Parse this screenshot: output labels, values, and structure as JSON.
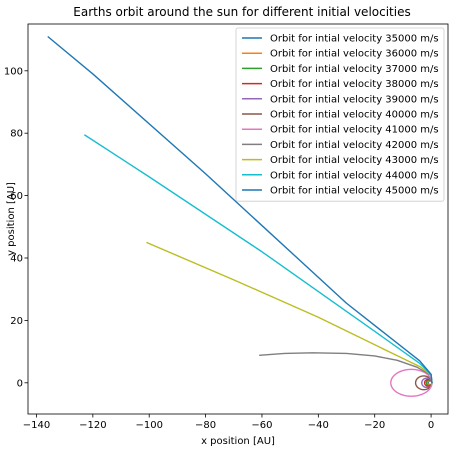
{
  "chart_data": {
    "type": "line",
    "title": "Earths orbit around the sun for different initial velocities",
    "xlabel": "x position [AU]",
    "ylabel": "y position [AU]",
    "xlim": [
      -143,
      6
    ],
    "ylim": [
      -10,
      115
    ],
    "xticks": [
      -140,
      -120,
      -100,
      -80,
      -60,
      -40,
      -20,
      0
    ],
    "yticks": [
      0,
      20,
      40,
      60,
      80,
      100
    ],
    "legend_position": "top-right",
    "grid": false,
    "series": [
      {
        "name": "Orbit for intial velocity 35000 m/s",
        "color": "#1f77b4",
        "kind": "ellipse",
        "cx": -0.35,
        "cy": 0,
        "rx": 0.65,
        "ry": 0.6
      },
      {
        "name": "Orbit for intial velocity 36000 m/s",
        "color": "#ff7f0e",
        "kind": "ellipse",
        "cx": -0.5,
        "cy": 0,
        "rx": 0.8,
        "ry": 0.7
      },
      {
        "name": "Orbit for intial velocity 37000 m/s",
        "color": "#2ca02c",
        "kind": "ellipse",
        "cx": -0.7,
        "cy": 0,
        "rx": 1.0,
        "ry": 0.9
      },
      {
        "name": "Orbit for intial velocity 38000 m/s",
        "color": "#d62728",
        "kind": "ellipse",
        "cx": -1.0,
        "cy": 0,
        "rx": 1.3,
        "ry": 1.1
      },
      {
        "name": "Orbit for intial velocity 39000 m/s",
        "color": "#9467bd",
        "kind": "ellipse",
        "cx": -1.5,
        "cy": 0,
        "rx": 1.8,
        "ry": 1.5
      },
      {
        "name": "Orbit for intial velocity 40000 m/s",
        "color": "#8c564b",
        "kind": "ellipse",
        "cx": -2.6,
        "cy": 0,
        "rx": 2.9,
        "ry": 2.2
      },
      {
        "name": "Orbit for intial velocity 41000 m/s",
        "color": "#e377c2",
        "kind": "ellipse",
        "cx": -7.0,
        "cy": 0,
        "rx": 7.3,
        "ry": 4.3
      },
      {
        "name": "Orbit for intial velocity 42000 m/s",
        "color": "#7f7f7f",
        "kind": "path",
        "points": [
          [
            0.3,
            0
          ],
          [
            0,
            2.4
          ],
          [
            -5,
            5
          ],
          [
            -12,
            7.2
          ],
          [
            -20,
            8.6
          ],
          [
            -30,
            9.4
          ],
          [
            -42,
            9.6
          ],
          [
            -52,
            9.4
          ],
          [
            -61,
            8.8
          ]
        ]
      },
      {
        "name": "Orbit for intial velocity 43000 m/s",
        "color": "#bcbd22",
        "kind": "path",
        "points": [
          [
            0.3,
            0
          ],
          [
            0,
            2.5
          ],
          [
            -4,
            5.2
          ],
          [
            -15,
            10
          ],
          [
            -40,
            21
          ],
          [
            -70,
            33
          ],
          [
            -101,
            45
          ]
        ]
      },
      {
        "name": "Orbit for intial velocity 44000 m/s",
        "color": "#17becf",
        "kind": "path",
        "points": [
          [
            0.3,
            0
          ],
          [
            0,
            2.6
          ],
          [
            -4,
            6.2
          ],
          [
            -20,
            16.5
          ],
          [
            -60,
            42
          ],
          [
            -100,
            66
          ],
          [
            -123,
            79.5
          ]
        ]
      },
      {
        "name": "Orbit for intial velocity 45000 m/s",
        "color": "#1f77b4",
        "kind": "path",
        "points": [
          [
            0.3,
            0
          ],
          [
            0,
            2.7
          ],
          [
            -4,
            7
          ],
          [
            -30,
            25.5
          ],
          [
            -80,
            67
          ],
          [
            -120,
            99
          ],
          [
            -136,
            111
          ]
        ]
      }
    ]
  }
}
